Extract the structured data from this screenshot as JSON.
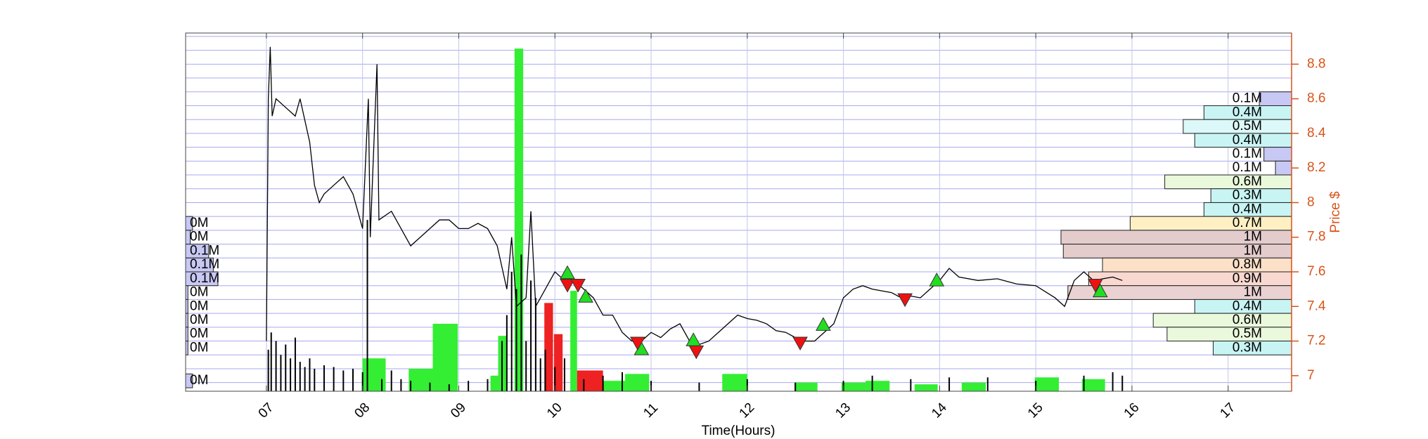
{
  "chart_data": {
    "type": "line",
    "x_label": "Time(Hours)",
    "y_label": "Price $",
    "axis_color": "#d95319",
    "grid": true,
    "xlim": [
      6.16,
      17.66
    ],
    "ylim": [
      6.91,
      8.98
    ],
    "xticks": [
      {
        "value": 7,
        "label": "07"
      },
      {
        "value": 8,
        "label": "08"
      },
      {
        "value": 9,
        "label": "09"
      },
      10,
      11,
      12,
      13,
      14,
      15,
      16,
      17
    ],
    "yticks": [
      7,
      7.2,
      7.4,
      7.6,
      7.8,
      8,
      8.2,
      8.4,
      8.6,
      8.8
    ],
    "price": {
      "color": "#000000",
      "x": [
        7.0,
        7.02,
        7.04,
        7.06,
        7.1,
        7.2,
        7.3,
        7.35,
        7.45,
        7.5,
        7.55,
        7.6,
        7.7,
        7.8,
        7.9,
        7.95,
        8.0,
        8.06,
        8.08,
        8.15,
        8.17,
        8.3,
        8.4,
        8.5,
        8.6,
        8.7,
        8.8,
        8.9,
        9.0,
        9.1,
        9.2,
        9.3,
        9.4,
        9.5,
        9.55,
        9.6,
        9.7,
        9.75,
        9.8,
        9.9,
        10.0,
        10.1,
        10.2,
        10.3,
        10.4,
        10.5,
        10.6,
        10.7,
        10.8,
        10.9,
        11.0,
        11.1,
        11.2,
        11.3,
        11.4,
        11.5,
        11.6,
        11.7,
        11.8,
        11.9,
        12.0,
        12.1,
        12.2,
        12.3,
        12.4,
        12.5,
        12.6,
        12.7,
        12.8,
        12.9,
        13.0,
        13.1,
        13.2,
        13.3,
        13.5,
        13.6,
        13.7,
        13.8,
        13.9,
        14.0,
        14.1,
        14.2,
        14.4,
        14.6,
        14.8,
        15.0,
        15.2,
        15.3,
        15.4,
        15.5,
        15.6,
        15.8,
        15.9
      ],
      "values": [
        7.2,
        8.6,
        8.9,
        8.5,
        8.6,
        8.55,
        8.5,
        8.6,
        8.35,
        8.1,
        8.0,
        8.05,
        8.1,
        8.15,
        8.05,
        7.95,
        7.85,
        8.6,
        7.8,
        8.8,
        7.9,
        7.95,
        7.85,
        7.75,
        7.8,
        7.85,
        7.9,
        7.9,
        7.85,
        7.85,
        7.88,
        7.85,
        7.75,
        7.5,
        7.8,
        7.4,
        7.45,
        7.95,
        7.4,
        7.5,
        7.6,
        7.55,
        7.55,
        7.5,
        7.45,
        7.35,
        7.35,
        7.25,
        7.2,
        7.2,
        7.25,
        7.22,
        7.27,
        7.3,
        7.2,
        7.18,
        7.2,
        7.25,
        7.3,
        7.35,
        7.33,
        7.32,
        7.3,
        7.26,
        7.25,
        7.22,
        7.2,
        7.2,
        7.25,
        7.3,
        7.45,
        7.5,
        7.52,
        7.5,
        7.48,
        7.45,
        7.46,
        7.45,
        7.5,
        7.55,
        7.62,
        7.57,
        7.55,
        7.56,
        7.53,
        7.52,
        7.45,
        7.4,
        7.55,
        7.6,
        7.55,
        7.57,
        7.55
      ]
    },
    "volume_spikes": {
      "color": "#000000",
      "x": [
        7.02,
        7.05,
        7.1,
        7.15,
        7.2,
        7.25,
        7.3,
        7.35,
        7.4,
        7.45,
        7.5,
        7.6,
        7.7,
        7.8,
        7.9,
        8.0,
        8.05,
        8.2,
        8.3,
        8.4,
        8.5,
        8.7,
        8.9,
        9.1,
        9.3,
        9.45,
        9.5,
        9.55,
        9.6,
        9.65,
        9.7,
        9.75,
        9.8,
        9.85,
        9.9,
        10.0,
        10.1,
        10.3,
        10.5,
        10.7,
        11.0,
        11.5,
        12.0,
        12.5,
        13.0,
        13.3,
        13.7,
        14.1,
        14.5,
        15.0,
        15.5,
        15.8,
        15.9
      ],
      "tops": [
        7.15,
        7.25,
        7.2,
        7.12,
        7.18,
        7.1,
        7.22,
        7.08,
        7.05,
        7.1,
        7.04,
        7.06,
        7.05,
        7.03,
        7.04,
        7.02,
        7.9,
        6.98,
        7.03,
        6.98,
        6.97,
        6.96,
        6.95,
        6.97,
        6.98,
        7.2,
        7.35,
        7.6,
        7.5,
        7.7,
        7.2,
        7.55,
        7.45,
        7.1,
        7.15,
        7.05,
        7.1,
        6.98,
        7.0,
        7.02,
        6.97,
        6.96,
        6.98,
        6.96,
        6.97,
        7.0,
        6.98,
        6.99,
        6.99,
        6.97,
        7.0,
        7.02,
        7.0
      ]
    },
    "blocks": [
      {
        "x0": 8.0,
        "x1": 8.24,
        "top": 7.1,
        "color": "#33ee33"
      },
      {
        "x0": 8.48,
        "x1": 8.73,
        "top": 7.04,
        "color": "#33ee33"
      },
      {
        "x0": 8.73,
        "x1": 8.99,
        "top": 7.3,
        "color": "#33ee33"
      },
      {
        "x0": 9.33,
        "x1": 9.41,
        "top": 7.0,
        "color": "#33ee33"
      },
      {
        "x0": 9.41,
        "x1": 9.5,
        "top": 7.23,
        "color": "#33ee33"
      },
      {
        "x0": 9.58,
        "x1": 9.67,
        "top": 8.89,
        "color": "#33ee33"
      },
      {
        "x0": 9.89,
        "x1": 9.98,
        "top": 7.42,
        "color": "#ee2222"
      },
      {
        "x0": 9.99,
        "x1": 10.08,
        "top": 7.24,
        "color": "#ee2222"
      },
      {
        "x0": 10.16,
        "x1": 10.23,
        "top": 7.49,
        "color": "#33ee33"
      },
      {
        "x0": 10.23,
        "x1": 10.5,
        "top": 7.03,
        "color": "#ee2222"
      },
      {
        "x0": 10.5,
        "x1": 10.73,
        "top": 6.97,
        "color": "#33ee33"
      },
      {
        "x0": 10.73,
        "x1": 10.98,
        "top": 7.01,
        "color": "#33ee33"
      },
      {
        "x0": 11.74,
        "x1": 12.0,
        "top": 7.01,
        "color": "#33ee33"
      },
      {
        "x0": 12.49,
        "x1": 12.73,
        "top": 6.96,
        "color": "#33ee33"
      },
      {
        "x0": 12.98,
        "x1": 13.23,
        "top": 6.96,
        "color": "#33ee33"
      },
      {
        "x0": 13.23,
        "x1": 13.48,
        "top": 6.97,
        "color": "#33ee33"
      },
      {
        "x0": 13.74,
        "x1": 13.98,
        "top": 6.95,
        "color": "#33ee33"
      },
      {
        "x0": 14.23,
        "x1": 14.48,
        "top": 6.96,
        "color": "#33ee33"
      },
      {
        "x0": 14.99,
        "x1": 15.24,
        "top": 6.99,
        "color": "#33ee33"
      },
      {
        "x0": 15.48,
        "x1": 15.72,
        "top": 6.98,
        "color": "#33ee33"
      }
    ],
    "buy": {
      "color": "#22dd22",
      "x": [
        10.13,
        10.32,
        10.9,
        11.44,
        12.79,
        13.97,
        15.67
      ],
      "values": [
        7.593,
        7.457,
        7.153,
        7.205,
        7.294,
        7.551,
        7.488
      ]
    },
    "sell": {
      "color": "#ee1111",
      "x": [
        10.13,
        10.24,
        10.86,
        11.47,
        12.55,
        13.64,
        15.62
      ],
      "values": [
        7.525,
        7.525,
        7.19,
        7.14,
        7.19,
        7.441,
        7.525
      ]
    },
    "profile_right": {
      "centers": [
        8.6,
        8.52,
        8.44,
        8.36,
        8.28,
        8.2,
        8.12,
        8.04,
        7.96,
        7.88,
        7.8,
        7.72,
        7.64,
        7.56,
        7.48,
        7.4,
        7.32,
        7.24,
        7.16
      ],
      "values": [
        0.14,
        0.38,
        0.47,
        0.42,
        0.12,
        0.07,
        0.55,
        0.35,
        0.38,
        0.7,
        1.0,
        0.99,
        0.82,
        0.88,
        0.97,
        0.42,
        0.6,
        0.54,
        0.34
      ],
      "value_labels": [
        "0.1M",
        "0.4M",
        "0.5M",
        "0.4M",
        "0.1M",
        "0.1M",
        "0.6M",
        "0.3M",
        "0.4M",
        "0.7M",
        "1M",
        "1M",
        "0.8M",
        "0.9M",
        "1M",
        "0.4M",
        "0.6M",
        "0.5M",
        "0.3M"
      ],
      "colors": [
        "#c8c8f4",
        "#c8f4f4",
        "#dcf8f8",
        "#c8f4f4",
        "#c8c8f4",
        "#c8c8f4",
        "#eaf8dc",
        "#c8f4f4",
        "#c8f4f4",
        "#fff0c4",
        "#e4cccc",
        "#e4cccc",
        "#fce0c8",
        "#f8d8d0",
        "#ead2d2",
        "#c8f4f4",
        "#eaf8dc",
        "#eaf8dc",
        "#c8f4f4"
      ]
    },
    "profile_left": {
      "centers": [
        7.88,
        7.8,
        7.72,
        7.64,
        7.56,
        7.48,
        7.4,
        7.32,
        7.24,
        7.16,
        6.97
      ],
      "values": [
        0.03,
        0.02,
        0.1,
        0.12,
        0.14,
        0.01,
        0.01,
        0.01,
        0.01,
        0.01,
        0.03
      ],
      "value_labels": [
        "0M",
        "0M",
        "0.1M",
        "0.1M",
        "0.1M",
        "0M",
        "0M",
        "0M",
        "0M",
        "0M",
        "0M"
      ],
      "color": "#c8c8f4"
    }
  }
}
